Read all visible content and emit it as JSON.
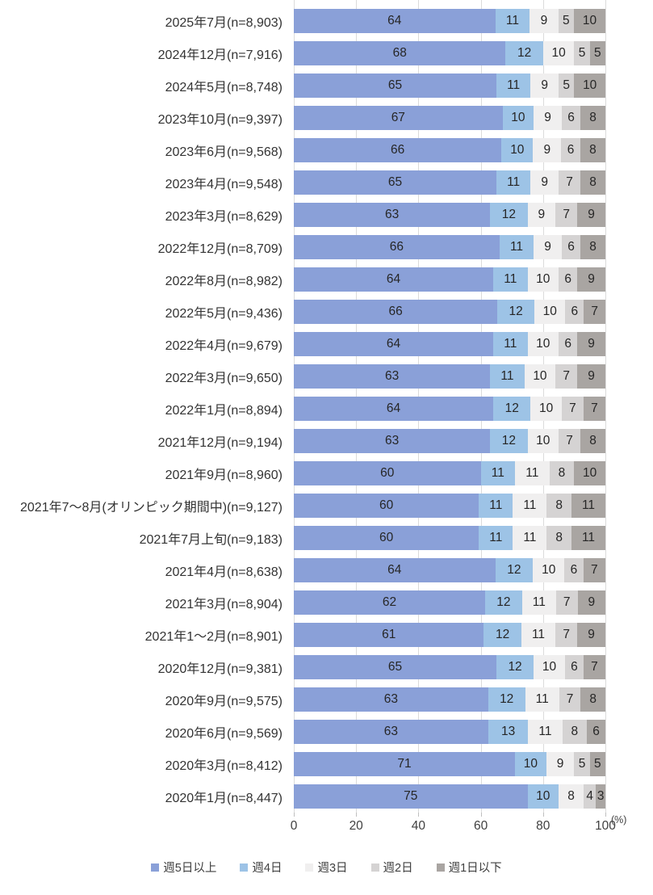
{
  "chart_data": {
    "type": "bar",
    "orientation": "horizontal",
    "stacked": true,
    "title": "",
    "xlabel": "",
    "ylabel": "",
    "unit_label": "(%)",
    "xlim": [
      0,
      100
    ],
    "axis_ticks": [
      0,
      20,
      40,
      60,
      80,
      100
    ],
    "grid": true,
    "legend_position": "bottom",
    "series_names": [
      "週5日以上",
      "週4日",
      "週3日",
      "週2日",
      "週1日以下"
    ],
    "series_colors": [
      "#8AA0D8",
      "#9DC3E6",
      "#F0EFEF",
      "#D5D3D3",
      "#A9A5A2"
    ],
    "rows": [
      {
        "label": "2025年7月(n=8,903)",
        "values": [
          64,
          11,
          9,
          5,
          10
        ]
      },
      {
        "label": "2024年12月(n=7,916)",
        "values": [
          68,
          12,
          10,
          5,
          5
        ]
      },
      {
        "label": "2024年5月(n=8,748)",
        "values": [
          65,
          11,
          9,
          5,
          10
        ]
      },
      {
        "label": "2023年10月(n=9,397)",
        "values": [
          67,
          10,
          9,
          6,
          8
        ]
      },
      {
        "label": "2023年6月(n=9,568)",
        "values": [
          66,
          10,
          9,
          6,
          8
        ]
      },
      {
        "label": "2023年4月(n=9,548)",
        "values": [
          65,
          11,
          9,
          7,
          8
        ]
      },
      {
        "label": "2023年3月(n=8,629)",
        "values": [
          63,
          12,
          9,
          7,
          9
        ]
      },
      {
        "label": "2022年12月(n=8,709)",
        "values": [
          66,
          11,
          9,
          6,
          8
        ]
      },
      {
        "label": "2022年8月(n=8,982)",
        "values": [
          64,
          11,
          10,
          6,
          9
        ]
      },
      {
        "label": "2022年5月(n=9,436)",
        "values": [
          66,
          12,
          10,
          6,
          7
        ]
      },
      {
        "label": "2022年4月(n=9,679)",
        "values": [
          64,
          11,
          10,
          6,
          9
        ]
      },
      {
        "label": "2022年3月(n=9,650)",
        "values": [
          63,
          11,
          10,
          7,
          9
        ]
      },
      {
        "label": "2022年1月(n=8,894)",
        "values": [
          64,
          12,
          10,
          7,
          7
        ]
      },
      {
        "label": "2021年12月(n=9,194)",
        "values": [
          63,
          12,
          10,
          7,
          8
        ]
      },
      {
        "label": "2021年9月(n=8,960)",
        "values": [
          60,
          11,
          11,
          8,
          10
        ]
      },
      {
        "label": "2021年7～8月(オリンピック期間中)(n=9,127)",
        "values": [
          60,
          11,
          11,
          8,
          11
        ]
      },
      {
        "label": "2021年7月上旬(n=9,183)",
        "values": [
          60,
          11,
          11,
          8,
          11
        ]
      },
      {
        "label": "2021年4月(n=8,638)",
        "values": [
          64,
          12,
          10,
          6,
          7
        ]
      },
      {
        "label": "2021年3月(n=8,904)",
        "values": [
          62,
          12,
          11,
          7,
          9
        ]
      },
      {
        "label": "2021年1～2月(n=8,901)",
        "values": [
          61,
          12,
          11,
          7,
          9
        ]
      },
      {
        "label": "2020年12月(n=9,381)",
        "values": [
          65,
          12,
          10,
          6,
          7
        ]
      },
      {
        "label": "2020年9月(n=9,575)",
        "values": [
          63,
          12,
          11,
          7,
          8
        ]
      },
      {
        "label": "2020年6月(n=9,569)",
        "values": [
          63,
          13,
          11,
          8,
          6
        ]
      },
      {
        "label": "2020年3月(n=8,412)",
        "values": [
          71,
          10,
          9,
          5,
          5
        ]
      },
      {
        "label": "2020年1月(n=8,447)",
        "values": [
          75,
          10,
          8,
          4,
          3
        ]
      }
    ]
  },
  "colors": {
    "grid_line": "#DBDBDB",
    "tick_mark": "#BFBFBF",
    "value_text": "#262626",
    "category_text": "#333333",
    "axis_text": "#404040"
  }
}
